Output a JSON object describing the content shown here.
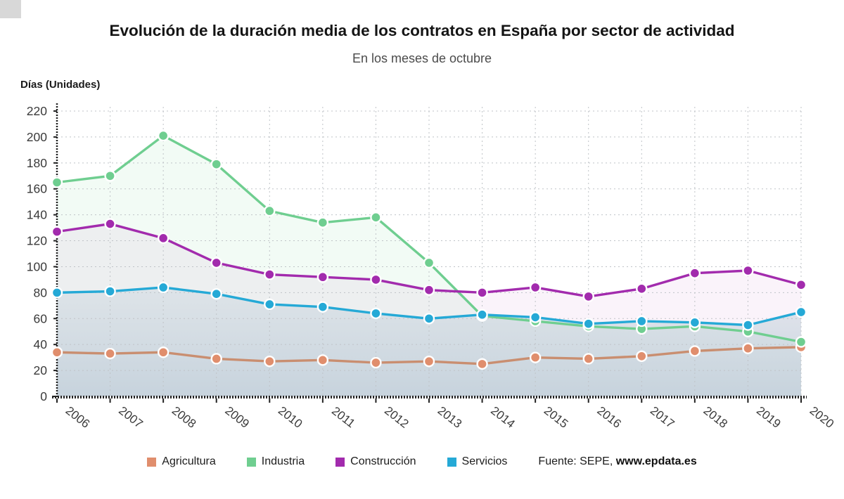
{
  "page": {
    "title": "Evolución de la duración media de los contratos en España por sector de actividad",
    "subtitle": "En los meses de octubre",
    "y_axis_title": "Días (Unidades)",
    "source_prefix": "Fuente: SEPE,",
    "source_link": "www.epdata.es"
  },
  "chart_data": {
    "type": "line",
    "title": "Evolución de la duración media de los contratos en España por sector de actividad",
    "subtitle": "En los meses de octubre",
    "ylabel": "Días (Unidades)",
    "xlabel": "",
    "categories": [
      "2006",
      "2007",
      "2008",
      "2009",
      "2010",
      "2011",
      "2012",
      "2013",
      "2014",
      "2015",
      "2016",
      "2017",
      "2018",
      "2019",
      "2020"
    ],
    "series": [
      {
        "name": "Agricultura",
        "color": "#E08E6D",
        "line_color": "#C98E70",
        "values": [
          34,
          33,
          34,
          29,
          27,
          28,
          26,
          27,
          25,
          30,
          29,
          31,
          35,
          37,
          38
        ]
      },
      {
        "name": "Industria",
        "color": "#6FCE90",
        "line_color": "#6FCE90",
        "values": [
          165,
          170,
          201,
          179,
          143,
          134,
          138,
          103,
          62,
          58,
          54,
          52,
          54,
          50,
          42
        ]
      },
      {
        "name": "Construcción",
        "color": "#A22BAD",
        "line_color": "#A22BAD",
        "values": [
          127,
          133,
          122,
          103,
          94,
          92,
          90,
          82,
          80,
          84,
          77,
          83,
          95,
          97,
          86
        ]
      },
      {
        "name": "Servicios",
        "color": "#25A9D6",
        "line_color": "#25A9D6",
        "values": [
          80,
          81,
          84,
          79,
          71,
          69,
          64,
          60,
          63,
          61,
          56,
          58,
          57,
          55,
          65
        ]
      }
    ],
    "ylim": [
      0,
      220
    ],
    "yticks": [
      0,
      20,
      40,
      60,
      80,
      100,
      120,
      140,
      160,
      180,
      200,
      220
    ],
    "grid": true,
    "legend_position": "bottom",
    "source": "Fuente: SEPE, www.epdata.es"
  }
}
